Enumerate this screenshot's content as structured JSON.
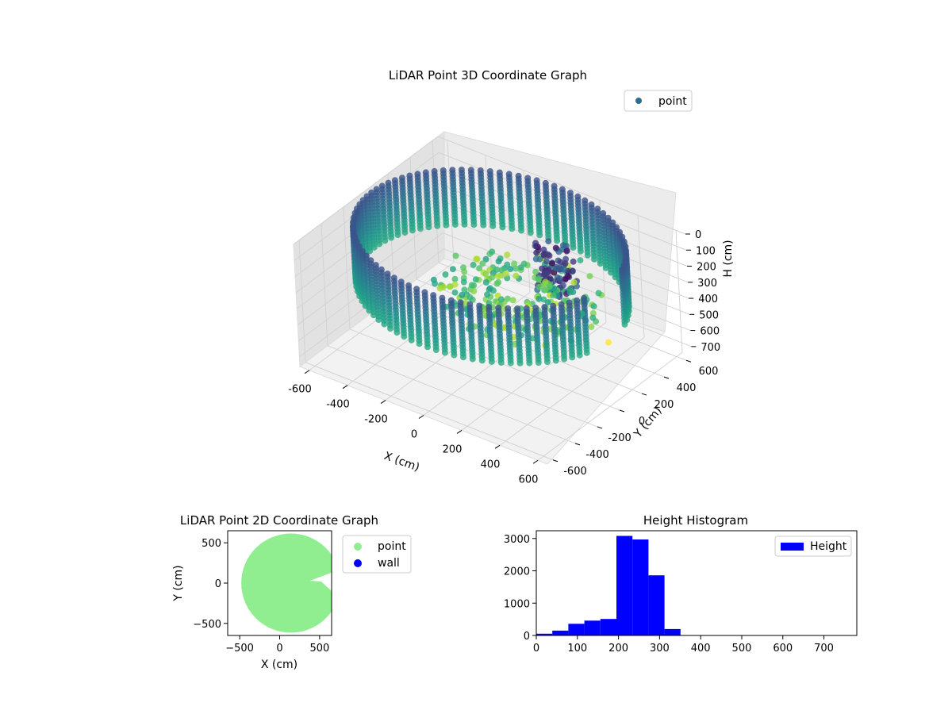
{
  "chart_data": [
    {
      "type": "scatter",
      "projection": "3d",
      "title": "LiDAR Point 3D Coordinate Graph",
      "xlabel": "X (cm)",
      "ylabel": "Y (cm)",
      "zlabel": "H (cm)",
      "x_ticks": [
        -600,
        -400,
        -200,
        0,
        200,
        400,
        600
      ],
      "y_ticks": [
        -600,
        -400,
        -200,
        0,
        200,
        400,
        600
      ],
      "z_ticks": [
        0,
        100,
        200,
        300,
        400,
        500,
        600,
        700
      ],
      "xlim": [
        -650,
        650
      ],
      "ylim": [
        -650,
        650
      ],
      "zlim": [
        760,
        0
      ],
      "z_inverted": true,
      "colormap": "viridis",
      "legend": {
        "entries": [
          "point"
        ],
        "placement": "upper-right",
        "marker_color": "#2c6e8e"
      },
      "grid": true,
      "shape": "ring of points at radius ~620 cm from height ~0 to ~340 cm, with an inner cluster near x 0-300, y 100-300"
    },
    {
      "type": "scatter",
      "title": "LiDAR Point 2D Coordinate Graph",
      "xlabel": "X (cm)",
      "ylabel": "Y (cm)",
      "x_ticks": [
        -500,
        0,
        500
      ],
      "y_ticks": [
        -500,
        0,
        500
      ],
      "xlim": [
        -650,
        650
      ],
      "ylim": [
        -650,
        650
      ],
      "series": [
        {
          "name": "point",
          "color": "#90ee90",
          "shape": "filled disc centered at (150, 0), radius ~620 cm"
        },
        {
          "name": "wall",
          "color": "#0000ff"
        }
      ],
      "legend_placement": "outside right"
    },
    {
      "type": "bar",
      "subtype": "histogram",
      "title": "Height Histogram",
      "bin_edges": [
        0,
        39,
        78,
        117,
        156,
        195,
        234,
        273,
        312,
        351,
        390,
        429,
        468,
        507,
        546,
        585,
        624,
        663,
        702,
        741,
        780
      ],
      "values": [
        55,
        150,
        360,
        460,
        510,
        3080,
        2970,
        1860,
        200,
        0,
        0,
        0,
        0,
        0,
        0,
        0,
        0,
        0,
        0,
        0
      ],
      "xlim": [
        0,
        780
      ],
      "ylim": [
        0,
        3240
      ],
      "x_ticks": [
        0,
        100,
        200,
        300,
        400,
        500,
        600,
        700
      ],
      "y_ticks": [
        0,
        1000,
        2000,
        3000
      ],
      "series": [
        {
          "name": "Height",
          "color": "#0000ff"
        }
      ],
      "legend_placement": "upper-right"
    }
  ]
}
